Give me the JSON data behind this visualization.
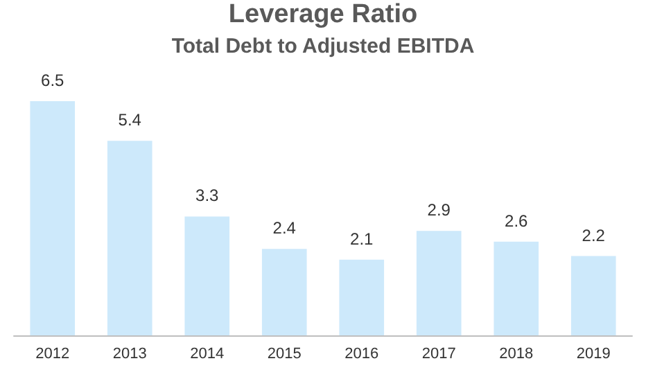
{
  "chart_data": {
    "type": "bar",
    "title": "Leverage Ratio",
    "subtitle": "Total Debt to Adjusted EBITDA",
    "categories": [
      "2012",
      "2013",
      "2014",
      "2015",
      "2016",
      "2017",
      "2018",
      "2019"
    ],
    "values": [
      6.5,
      5.4,
      3.3,
      2.4,
      2.1,
      2.9,
      2.6,
      2.2
    ],
    "color": "#cde9fb",
    "data_labels": true
  }
}
